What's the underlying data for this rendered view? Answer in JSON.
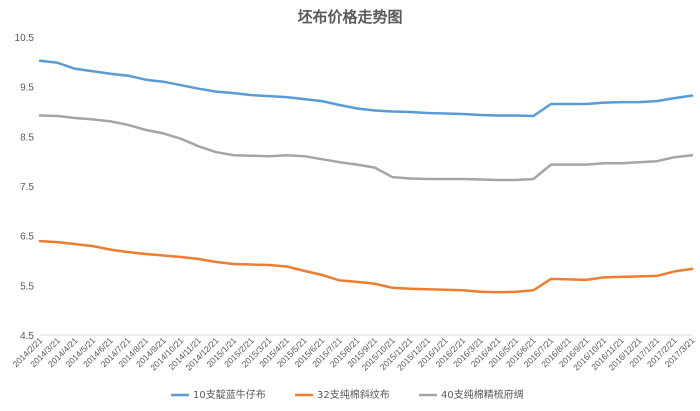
{
  "chart_data": {
    "type": "line",
    "title": "坯布价格走势图",
    "xlabel": "",
    "ylabel": "",
    "ylim": [
      4.5,
      10.5
    ],
    "yticks": [
      "10.5",
      "9.5",
      "8.5",
      "7.5",
      "6.5",
      "5.5",
      "4.5"
    ],
    "grid": false,
    "legend_position": "bottom",
    "x": [
      "2014/2/21",
      "2014/3/21",
      "2014/4/21",
      "2014/5/21",
      "2014/6/21",
      "2014/7/21",
      "2014/8/21",
      "2014/9/21",
      "2014/10/21",
      "2014/11/21",
      "2014/12/21",
      "2015/1/21",
      "2015/2/21",
      "2015/3/21",
      "2015/4/21",
      "2015/5/21",
      "2015/6/21",
      "2015/7/21",
      "2015/8/21",
      "2015/9/21",
      "2015/10/21",
      "2015/11/21",
      "2015/12/21",
      "2016/1/21",
      "2016/2/21",
      "2016/3/21",
      "2016/4/21",
      "2016/5/21",
      "2016/6/21",
      "2016/7/21",
      "2016/8/21",
      "2016/9/21",
      "2016/10/21",
      "2016/11/21",
      "2016/12/21",
      "2017/1/21",
      "2017/2/21",
      "2017/3/21"
    ],
    "series": [
      {
        "name": "10支靛蓝牛仔布",
        "color": "#5b9bd5",
        "values": [
          10.02,
          9.98,
          9.86,
          9.81,
          9.76,
          9.72,
          9.64,
          9.6,
          9.53,
          9.46,
          9.4,
          9.37,
          9.33,
          9.31,
          9.29,
          9.25,
          9.21,
          9.13,
          9.06,
          9.02,
          9.0,
          8.99,
          8.97,
          8.96,
          8.95,
          8.93,
          8.92,
          8.92,
          8.91,
          9.15,
          9.15,
          9.15,
          9.18,
          9.19,
          9.19,
          9.21,
          9.27,
          9.32
        ]
      },
      {
        "name": "32支纯棉斜纹布",
        "color": "#ed7d31",
        "values": [
          6.39,
          6.37,
          6.33,
          6.29,
          6.22,
          6.17,
          6.13,
          6.1,
          6.07,
          6.03,
          5.97,
          5.93,
          5.92,
          5.91,
          5.88,
          5.79,
          5.71,
          5.6,
          5.57,
          5.53,
          5.45,
          5.43,
          5.42,
          5.41,
          5.4,
          5.37,
          5.36,
          5.37,
          5.4,
          5.63,
          5.62,
          5.61,
          5.66,
          5.67,
          5.68,
          5.69,
          5.78,
          5.83
        ]
      },
      {
        "name": "40支纯棉精梳府绸",
        "color": "#a5a5a5",
        "values": [
          8.92,
          8.91,
          8.87,
          8.84,
          8.8,
          8.73,
          8.63,
          8.56,
          8.45,
          8.3,
          8.18,
          8.12,
          8.11,
          8.1,
          8.12,
          8.1,
          8.04,
          7.98,
          7.93,
          7.87,
          7.68,
          7.65,
          7.64,
          7.64,
          7.64,
          7.63,
          7.62,
          7.62,
          7.64,
          7.93,
          7.93,
          7.93,
          7.96,
          7.96,
          7.98,
          8.0,
          8.08,
          8.12
        ]
      }
    ]
  }
}
